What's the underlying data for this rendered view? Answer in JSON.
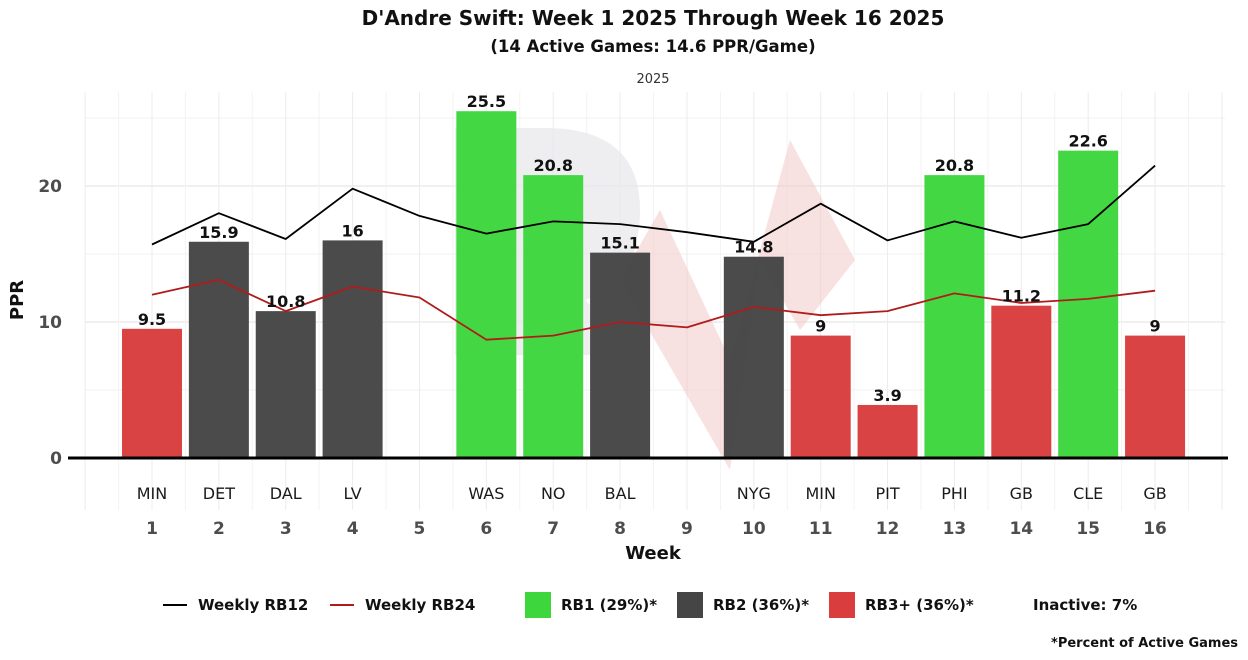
{
  "chart_data": {
    "type": "bar",
    "title": "D'Andre Swift: Week 1 2025 Through Week 16 2025",
    "subtitle": "(14 Active Games: 14.6 PPR/Game)",
    "facet_label": "2025",
    "xlabel": "Week",
    "ylabel": "PPR",
    "ylim": [
      0,
      26.5
    ],
    "yticks": [
      0,
      10,
      20
    ],
    "grid": true,
    "categories": [
      "1",
      "2",
      "3",
      "4",
      "5",
      "6",
      "7",
      "8",
      "9",
      "10",
      "11",
      "12",
      "13",
      "14",
      "15",
      "16"
    ],
    "opponents": [
      "MIN",
      "DET",
      "DAL",
      "LV",
      "",
      "WAS",
      "NO",
      "BAL",
      "",
      "NYG",
      "MIN",
      "PIT",
      "PHI",
      "GB",
      "CLE",
      "GB"
    ],
    "values": [
      9.5,
      15.9,
      10.8,
      16,
      null,
      25.5,
      20.8,
      15.1,
      null,
      14.8,
      9,
      3.9,
      20.8,
      11.2,
      22.6,
      9
    ],
    "value_labels": [
      "9.5",
      "15.9",
      "10.8",
      "16",
      "",
      "25.5",
      "20.8",
      "15.1",
      "",
      "14.8",
      "9",
      "3.9",
      "20.8",
      "11.2",
      "22.6",
      "9"
    ],
    "tiers": [
      "RB3+",
      "RB2",
      "RB2",
      "RB2",
      null,
      "RB1",
      "RB1",
      "RB2",
      null,
      "RB2",
      "RB3+",
      "RB3+",
      "RB1",
      "RB3+",
      "RB1",
      "RB3+"
    ],
    "tier_colors": {
      "RB1": "#3dd63d",
      "RB2": "#454545",
      "RB3+": "#d93d3d"
    },
    "series": [
      {
        "name": "Weekly RB12",
        "type": "line",
        "color": "#000000",
        "values": [
          15.7,
          18.0,
          16.1,
          19.8,
          17.8,
          16.5,
          17.4,
          17.2,
          16.6,
          15.9,
          18.7,
          16.0,
          17.4,
          16.2,
          17.2,
          21.5
        ]
      },
      {
        "name": "Weekly RB24",
        "type": "line",
        "color": "#b01c1c",
        "values": [
          12.0,
          13.1,
          10.8,
          12.6,
          11.8,
          8.7,
          9.0,
          10.0,
          9.6,
          11.1,
          10.5,
          10.8,
          12.1,
          11.4,
          11.7,
          12.3
        ]
      }
    ],
    "legend": {
      "position": "bottom",
      "items": [
        {
          "kind": "line",
          "label": "Weekly RB12",
          "color": "#000000"
        },
        {
          "kind": "line",
          "label": "Weekly RB24",
          "color": "#b01c1c"
        },
        {
          "kind": "box",
          "label": "RB1 (29%)*",
          "color": "#3dd63d"
        },
        {
          "kind": "box",
          "label": "RB2 (36%)*",
          "color": "#454545"
        },
        {
          "kind": "box",
          "label": "RB3+ (36%)*",
          "color": "#d93d3d"
        },
        {
          "kind": "text",
          "label": "Inactive: 7%"
        }
      ]
    },
    "footnote": "*Percent of Active Games"
  }
}
